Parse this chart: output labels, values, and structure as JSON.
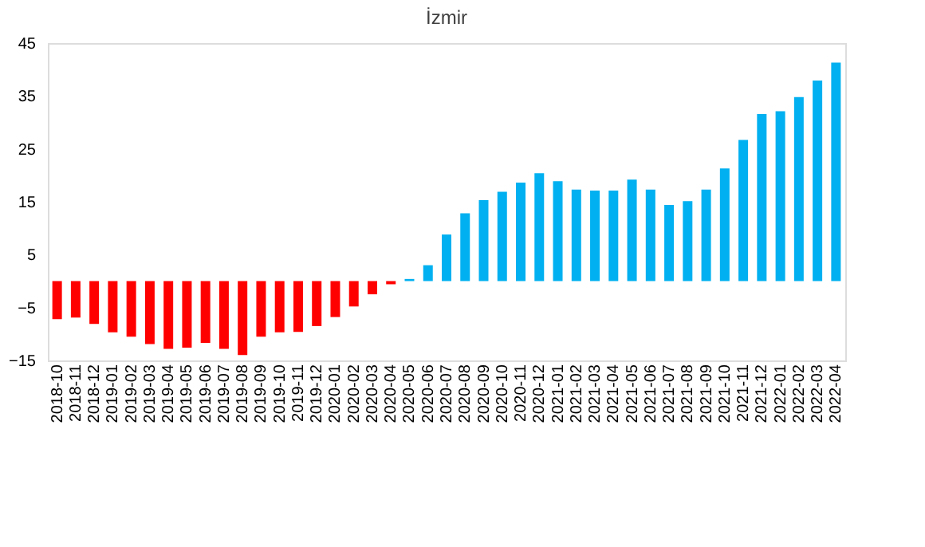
{
  "chart_data": {
    "type": "bar",
    "title": "İzmir",
    "categories": [
      "2018-10",
      "2018-11",
      "2018-12",
      "2019-01",
      "2019-02",
      "2019-03",
      "2019-04",
      "2019-05",
      "2019-06",
      "2019-07",
      "2019-08",
      "2019-09",
      "2019-10",
      "2019-11",
      "2019-12",
      "2020-01",
      "2020-02",
      "2020-03",
      "2020-04",
      "2020-05",
      "2020-06",
      "2020-07",
      "2020-08",
      "2020-09",
      "2020-10",
      "2020-11",
      "2020-12",
      "2021-01",
      "2021-02",
      "2021-03",
      "2021-04",
      "2021-05",
      "2021-06",
      "2021-07",
      "2021-08",
      "2021-09",
      "2021-10",
      "2021-11",
      "2021-12",
      "2022-01",
      "2022-02",
      "2022-03",
      "2022-04"
    ],
    "values": [
      -7.2,
      -6.9,
      -8.1,
      -9.7,
      -10.5,
      -11.9,
      -12.8,
      -12.6,
      -11.7,
      -12.8,
      -14.0,
      -10.5,
      -9.7,
      -9.6,
      -8.5,
      -6.8,
      -4.8,
      -2.5,
      -0.6,
      0.4,
      3.0,
      8.8,
      12.8,
      15.3,
      16.9,
      18.6,
      20.4,
      18.9,
      17.3,
      17.1,
      17.1,
      19.2,
      17.3,
      14.4,
      15.1,
      17.3,
      21.3,
      26.7,
      31.6,
      32.1,
      34.8,
      37.9,
      41.3
    ],
    "colors": [
      "#ff0000",
      "#ff0000",
      "#ff0000",
      "#ff0000",
      "#ff0000",
      "#ff0000",
      "#ff0000",
      "#ff0000",
      "#ff0000",
      "#ff0000",
      "#ff0000",
      "#ff0000",
      "#ff0000",
      "#ff0000",
      "#ff0000",
      "#ff0000",
      "#ff0000",
      "#ff0000",
      "#ff0000",
      "#00b0f0",
      "#00b0f0",
      "#00b0f0",
      "#00b0f0",
      "#00b0f0",
      "#00b0f0",
      "#00b0f0",
      "#00b0f0",
      "#00b0f0",
      "#00b0f0",
      "#00b0f0",
      "#00b0f0",
      "#00b0f0",
      "#00b0f0",
      "#00b0f0",
      "#00b0f0",
      "#00b0f0",
      "#00b0f0",
      "#00b0f0",
      "#00b0f0",
      "#00b0f0",
      "#00b0f0",
      "#00b0f0",
      "#00b0f0"
    ],
    "ylim": [
      -15,
      45
    ],
    "yticks": [
      -15,
      -5,
      5,
      15,
      25,
      35,
      45
    ],
    "grid": false
  }
}
